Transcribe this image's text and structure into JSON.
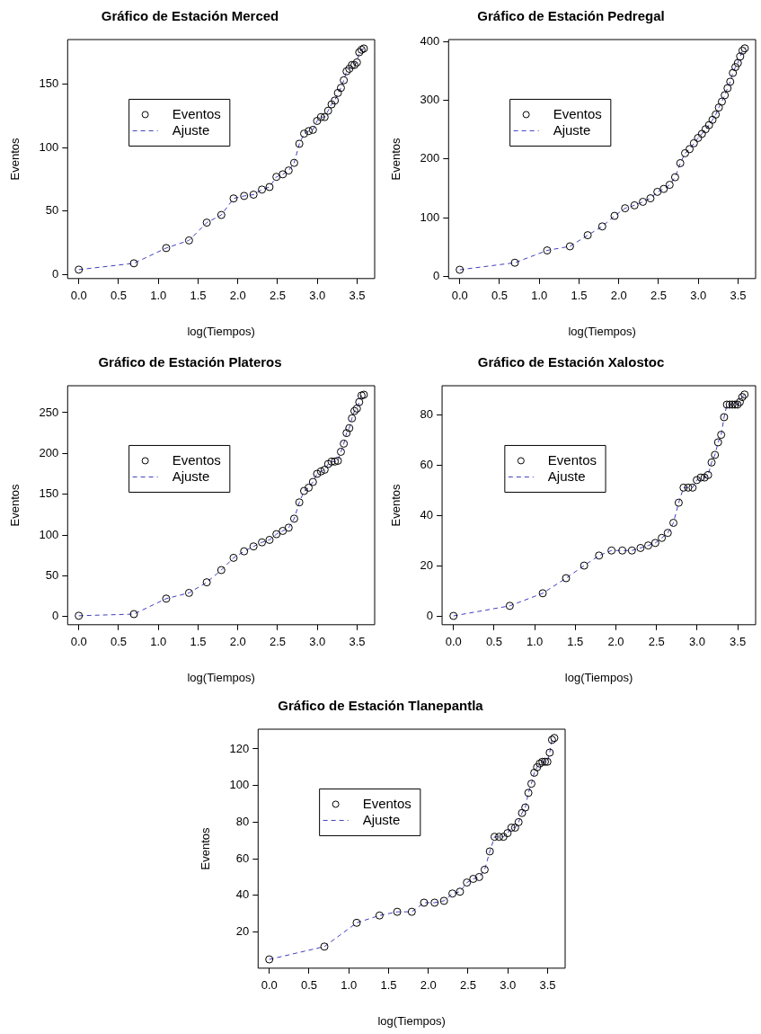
{
  "chart_data": [
    {
      "type": "scatter",
      "title": "Gráfico de Estación Merced",
      "xlabel": "log(Tiempos)",
      "ylabel": "Eventos",
      "xlim": [
        -0.14,
        3.72
      ],
      "xticks": [
        {
          "value": 0,
          "label": "0.0"
        },
        0.5,
        {
          "value": 1,
          "label": "1.0"
        },
        1.5,
        {
          "value": 2,
          "label": "2.0"
        },
        2.5,
        {
          "value": 3,
          "label": "3.0"
        },
        3.5
      ],
      "ylim": [
        -3,
        185
      ],
      "yticks": [
        0,
        50,
        100,
        150
      ],
      "grid": false,
      "legend": "top left",
      "x": [
        0,
        0.693,
        1.099,
        1.386,
        1.609,
        1.792,
        1.946,
        2.079,
        2.197,
        2.303,
        2.398,
        2.485,
        2.565,
        2.639,
        2.708,
        2.773,
        2.833,
        2.89,
        2.944,
        2.996,
        3.045,
        3.091,
        3.135,
        3.178,
        3.219,
        3.258,
        3.296,
        3.332,
        3.367,
        3.401,
        3.434,
        3.466,
        3.497,
        3.526,
        3.555,
        3.584
      ],
      "series": [
        {
          "name": "Eventos",
          "type": "scatter",
          "marker": "circle",
          "color": "#000000",
          "values": [
            4,
            9,
            21,
            27,
            41,
            47,
            60,
            62,
            63,
            67,
            69,
            77,
            79,
            82,
            88,
            103,
            111,
            113,
            114,
            121,
            124,
            124,
            129,
            134,
            137,
            143,
            147,
            153,
            160,
            162,
            165,
            165,
            167,
            175,
            177,
            178
          ]
        },
        {
          "name": "Ajuste",
          "type": "line",
          "marker": "none",
          "line_style": "dashed",
          "color": "#3f3fbf",
          "values": [
            4,
            9,
            21,
            27,
            41,
            47,
            60,
            62,
            63,
            67,
            69,
            77,
            79,
            82,
            88,
            103,
            111,
            113,
            114,
            121,
            124,
            124,
            129,
            134,
            137,
            143,
            147,
            153,
            160,
            162,
            165,
            165,
            167,
            175,
            177,
            178
          ]
        }
      ]
    },
    {
      "type": "scatter",
      "title": "Gráfico de Estación Pedregal",
      "xlabel": "log(Tiempos)",
      "ylabel": "Eventos",
      "xlim": [
        -0.14,
        3.72
      ],
      "xticks": [
        {
          "value": 0,
          "label": "0.0"
        },
        0.5,
        {
          "value": 1,
          "label": "1.0"
        },
        1.5,
        {
          "value": 2,
          "label": "2.0"
        },
        2.5,
        {
          "value": 3,
          "label": "3.0"
        },
        3.5
      ],
      "ylim": [
        -4,
        404
      ],
      "yticks": [
        0,
        100,
        200,
        300,
        400
      ],
      "grid": false,
      "legend": "top left",
      "x": [
        0,
        0.693,
        1.099,
        1.386,
        1.609,
        1.792,
        1.946,
        2.079,
        2.197,
        2.303,
        2.398,
        2.485,
        2.565,
        2.639,
        2.708,
        2.773,
        2.833,
        2.89,
        2.944,
        2.996,
        3.045,
        3.091,
        3.135,
        3.178,
        3.219,
        3.258,
        3.296,
        3.332,
        3.367,
        3.401,
        3.434,
        3.466,
        3.497,
        3.526,
        3.555,
        3.584
      ],
      "series": [
        {
          "name": "Eventos",
          "type": "scatter",
          "marker": "circle",
          "color": "#000000",
          "values": [
            11,
            23,
            44,
            51,
            70,
            85,
            103,
            116,
            121,
            127,
            133,
            144,
            149,
            156,
            169,
            193,
            210,
            217,
            227,
            236,
            243,
            251,
            258,
            267,
            276,
            288,
            298,
            309,
            321,
            332,
            347,
            357,
            364,
            375,
            385,
            389
          ]
        },
        {
          "name": "Ajuste",
          "type": "line",
          "marker": "none",
          "line_style": "dashed",
          "color": "#3f3fbf",
          "values": [
            11,
            23,
            44,
            51,
            70,
            85,
            103,
            116,
            121,
            127,
            133,
            144,
            149,
            156,
            169,
            193,
            210,
            217,
            227,
            236,
            243,
            251,
            258,
            267,
            276,
            288,
            298,
            309,
            321,
            332,
            347,
            357,
            364,
            375,
            385,
            389
          ]
        }
      ]
    },
    {
      "type": "scatter",
      "title": "Gráfico de Estación Plateros",
      "xlabel": "log(Tiempos)",
      "ylabel": "Eventos",
      "xlim": [
        -0.14,
        3.72
      ],
      "xticks": [
        {
          "value": 0,
          "label": "0.0"
        },
        0.5,
        {
          "value": 1,
          "label": "1.0"
        },
        1.5,
        {
          "value": 2,
          "label": "2.0"
        },
        2.5,
        {
          "value": 3,
          "label": "3.0"
        },
        3.5
      ],
      "ylim": [
        -10,
        283
      ],
      "yticks": [
        0,
        50,
        100,
        150,
        200,
        250
      ],
      "grid": false,
      "legend": "top left",
      "x": [
        0,
        0.693,
        1.099,
        1.386,
        1.609,
        1.792,
        1.946,
        2.079,
        2.197,
        2.303,
        2.398,
        2.485,
        2.565,
        2.639,
        2.708,
        2.773,
        2.833,
        2.89,
        2.944,
        2.996,
        3.045,
        3.091,
        3.135,
        3.178,
        3.219,
        3.258,
        3.296,
        3.332,
        3.367,
        3.401,
        3.434,
        3.466,
        3.497,
        3.526,
        3.555,
        3.584
      ],
      "series": [
        {
          "name": "Eventos",
          "type": "scatter",
          "marker": "circle",
          "color": "#000000",
          "values": [
            1,
            3,
            22,
            29,
            42,
            57,
            72,
            80,
            86,
            91,
            94,
            101,
            105,
            109,
            120,
            140,
            154,
            158,
            165,
            175,
            178,
            180,
            187,
            190,
            190,
            191,
            202,
            212,
            225,
            231,
            243,
            252,
            255,
            263,
            271,
            272
          ]
        },
        {
          "name": "Ajuste",
          "type": "line",
          "marker": "none",
          "line_style": "dashed",
          "color": "#3f3fbf",
          "values": [
            1,
            3,
            22,
            29,
            42,
            57,
            72,
            80,
            86,
            91,
            94,
            101,
            105,
            109,
            120,
            140,
            154,
            158,
            165,
            175,
            178,
            180,
            187,
            190,
            190,
            191,
            202,
            212,
            225,
            231,
            243,
            252,
            255,
            263,
            271,
            272
          ]
        }
      ]
    },
    {
      "type": "scatter",
      "title": "Gráfico de Estación Xalostoc",
      "xlabel": "log(Tiempos)",
      "ylabel": "Eventos",
      "xlim": [
        -0.14,
        3.72
      ],
      "xticks": [
        {
          "value": 0,
          "label": "0.0"
        },
        0.5,
        {
          "value": 1,
          "label": "1.0"
        },
        1.5,
        {
          "value": 2,
          "label": "2.0"
        },
        2.5,
        {
          "value": 3,
          "label": "3.0"
        },
        3.5
      ],
      "ylim": [
        -3.5,
        91.5
      ],
      "yticks": [
        0,
        20,
        40,
        60,
        80
      ],
      "grid": false,
      "legend": "top left",
      "x": [
        0,
        0.693,
        1.099,
        1.386,
        1.609,
        1.792,
        1.946,
        2.079,
        2.197,
        2.303,
        2.398,
        2.485,
        2.565,
        2.639,
        2.708,
        2.773,
        2.833,
        2.89,
        2.944,
        2.996,
        3.045,
        3.091,
        3.135,
        3.178,
        3.219,
        3.258,
        3.296,
        3.332,
        3.367,
        3.401,
        3.434,
        3.466,
        3.497,
        3.526,
        3.555,
        3.584
      ],
      "series": [
        {
          "name": "Eventos",
          "type": "scatter",
          "marker": "circle",
          "color": "#000000",
          "values": [
            0,
            4,
            9,
            15,
            20,
            24,
            26,
            26,
            26,
            27,
            28,
            29,
            31,
            33,
            37,
            45,
            51,
            51,
            51,
            54,
            55,
            55,
            56,
            61,
            64,
            69,
            72,
            79,
            84,
            84,
            84,
            84,
            84,
            85,
            87,
            88
          ]
        },
        {
          "name": "Ajuste",
          "type": "line",
          "marker": "none",
          "line_style": "dashed",
          "color": "#3f3fbf",
          "values": [
            0,
            4,
            9,
            15,
            20,
            24,
            26,
            26,
            26,
            27,
            28,
            29,
            31,
            33,
            37,
            45,
            51,
            51,
            51,
            54,
            55,
            55,
            56,
            61,
            64,
            69,
            72,
            79,
            84,
            84,
            84,
            84,
            84,
            85,
            87,
            88
          ]
        }
      ]
    },
    {
      "type": "scatter",
      "title": "Gráfico de Estación Tlanepantla",
      "xlabel": "log(Tiempos)",
      "ylabel": "Eventos",
      "xlim": [
        -0.14,
        3.72
      ],
      "xticks": [
        {
          "value": 0,
          "label": "0.0"
        },
        0.5,
        {
          "value": 1,
          "label": "1.0"
        },
        1.5,
        {
          "value": 2,
          "label": "2.0"
        },
        2.5,
        {
          "value": 3,
          "label": "3.0"
        },
        3.5
      ],
      "ylim": [
        0.2,
        130.8
      ],
      "yticks": [
        20,
        40,
        60,
        80,
        100,
        120
      ],
      "grid": false,
      "legend": "top left",
      "x": [
        0,
        0.693,
        1.099,
        1.386,
        1.609,
        1.792,
        1.946,
        2.079,
        2.197,
        2.303,
        2.398,
        2.485,
        2.565,
        2.639,
        2.708,
        2.773,
        2.833,
        2.89,
        2.944,
        2.996,
        3.045,
        3.091,
        3.135,
        3.178,
        3.219,
        3.258,
        3.296,
        3.332,
        3.367,
        3.401,
        3.434,
        3.466,
        3.497,
        3.526,
        3.555,
        3.584
      ],
      "series": [
        {
          "name": "Eventos",
          "type": "scatter",
          "marker": "circle",
          "color": "#000000",
          "values": [
            5,
            12,
            25,
            29,
            31,
            31,
            36,
            36,
            37,
            41,
            42,
            47,
            49,
            50,
            54,
            64,
            72,
            72,
            72,
            74,
            77,
            77,
            80,
            85,
            88,
            96,
            101,
            107,
            110,
            112,
            113,
            113,
            113,
            118,
            125,
            126
          ]
        },
        {
          "name": "Ajuste",
          "type": "line",
          "marker": "none",
          "line_style": "dashed",
          "color": "#3f3fbf",
          "values": [
            5,
            12,
            25,
            29,
            31,
            31,
            36,
            36,
            37,
            41,
            42,
            47,
            49,
            50,
            54,
            64,
            72,
            72,
            72,
            74,
            77,
            77,
            80,
            85,
            88,
            96,
            101,
            107,
            110,
            112,
            113,
            113,
            113,
            118,
            125,
            126
          ]
        }
      ]
    }
  ]
}
